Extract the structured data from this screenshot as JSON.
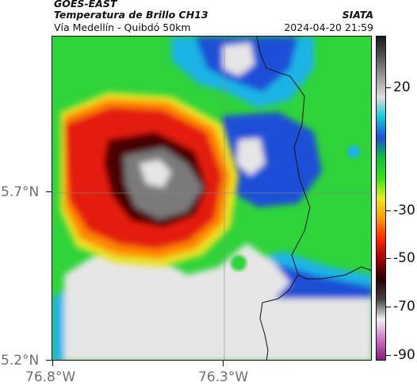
{
  "header": {
    "satellite": "GOES-EAST",
    "product": "Temperatura de Brillo CH13",
    "region": "Vía Medellín - Quibdó 50km",
    "source": "SIATA",
    "datetime": "2024-04-20 21:59"
  },
  "axes": {
    "lat_labels": [
      "5.7°N",
      "5.2°N"
    ],
    "lon_labels": [
      "76.8°W",
      "76.3°W"
    ]
  },
  "colorbar": {
    "labels": [
      "20",
      "-30",
      "-50",
      "-70",
      "-90"
    ],
    "stops": [
      "#1a1a1a",
      "#555555",
      "#9a9a9a",
      "#dddddd",
      "#13c8d8",
      "#1f4fd8",
      "#10c040",
      "#37e018",
      "#e8ea20",
      "#ff9a00",
      "#ff2a00",
      "#a00000",
      "#2a0000",
      "#444444",
      "#f0f0f0",
      "#d070c0",
      "#80207a"
    ]
  },
  "map_colors": {
    "green": "#2fd33a",
    "cold_white": "#e6e6e6",
    "blue": "#1d4fd6",
    "cyan": "#1ab4e6",
    "yellow": "#e8e425",
    "orange": "#ff8a00",
    "red": "#e41a0a",
    "dark_red": "#4a0000",
    "core_gray": "#7a7a7a",
    "border_line": "#111111"
  }
}
